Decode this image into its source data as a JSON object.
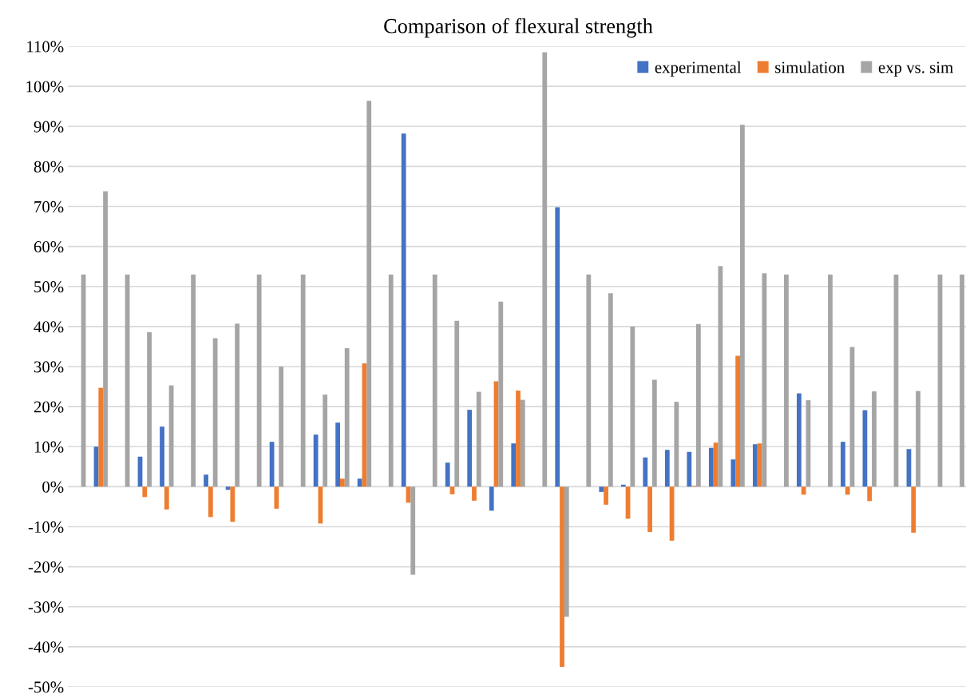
{
  "chart_data": {
    "type": "bar",
    "title": "Comparison of flexural strength",
    "categories": [
      null,
      null,
      null,
      null,
      null,
      null,
      null,
      null,
      null,
      null,
      null,
      null,
      null,
      null,
      null,
      null,
      null,
      null,
      null,
      null,
      null,
      null,
      null,
      null,
      null,
      null,
      null,
      null,
      null,
      null,
      null,
      null,
      null,
      null,
      null,
      null,
      null,
      null,
      null,
      null,
      null
    ],
    "series": [
      {
        "name": "experimental",
        "color": "#4472c4",
        "values": [
          null,
          10,
          null,
          7.5,
          15,
          null,
          3,
          -0.8,
          null,
          11.2,
          null,
          13,
          16,
          2,
          null,
          88.2,
          null,
          6,
          19.2,
          -6,
          10.8,
          null,
          69.8,
          null,
          -1.3,
          0.5,
          7.3,
          9.2,
          8.7,
          9.7,
          6.8,
          10.6,
          null,
          23.3,
          null,
          11.2,
          19.1,
          null,
          9.4,
          null,
          null
        ]
      },
      {
        "name": "simulation",
        "color": "#ed7d31",
        "values": [
          null,
          24.7,
          null,
          -2.6,
          -5.7,
          null,
          -7.6,
          -8.8,
          null,
          -5.5,
          null,
          -9.2,
          2,
          30.8,
          null,
          -4,
          null,
          -1.9,
          -3.5,
          26.3,
          24,
          null,
          -45,
          null,
          -4.5,
          -8,
          -11.3,
          -13.5,
          0.2,
          11,
          32.7,
          10.8,
          null,
          -2,
          null,
          -2,
          -3.6,
          null,
          -11.5,
          null,
          null
        ]
      },
      {
        "name": "exp vs. sim",
        "color": "#a5a5a5",
        "values": [
          53,
          73.8,
          53,
          38.6,
          25.3,
          53,
          37.1,
          40.7,
          53,
          30,
          53,
          23,
          34.6,
          96.4,
          53,
          -22,
          53,
          41.4,
          23.7,
          46.2,
          21.7,
          108.5,
          -32.5,
          53,
          48.3,
          40,
          26.7,
          21.2,
          40.6,
          55.1,
          90.4,
          53.3,
          53,
          21.6,
          53,
          34.9,
          23.8,
          53,
          23.9,
          53,
          53
        ]
      }
    ],
    "ylim": [
      -50,
      110
    ],
    "yticks": [
      {
        "value": -50,
        "label": "-50%"
      },
      {
        "value": -40,
        "label": "-40%"
      },
      {
        "value": -30,
        "label": "-30%"
      },
      {
        "value": -20,
        "label": "-20%"
      },
      {
        "value": -10,
        "label": "-10%"
      },
      {
        "value": 0,
        "label": "0%"
      },
      {
        "value": 10,
        "label": "10%"
      },
      {
        "value": 20,
        "label": "20%"
      },
      {
        "value": 30,
        "label": "30%"
      },
      {
        "value": 40,
        "label": "40%"
      },
      {
        "value": 50,
        "label": "50%"
      },
      {
        "value": 60,
        "label": "60%"
      },
      {
        "value": 70,
        "label": "70%"
      },
      {
        "value": 80,
        "label": "80%"
      },
      {
        "value": 90,
        "label": "90%"
      },
      {
        "value": 100,
        "label": "100%"
      },
      {
        "value": 110,
        "label": "110%"
      }
    ],
    "grid": "y",
    "legend": "top right",
    "tick_labels": "y"
  }
}
